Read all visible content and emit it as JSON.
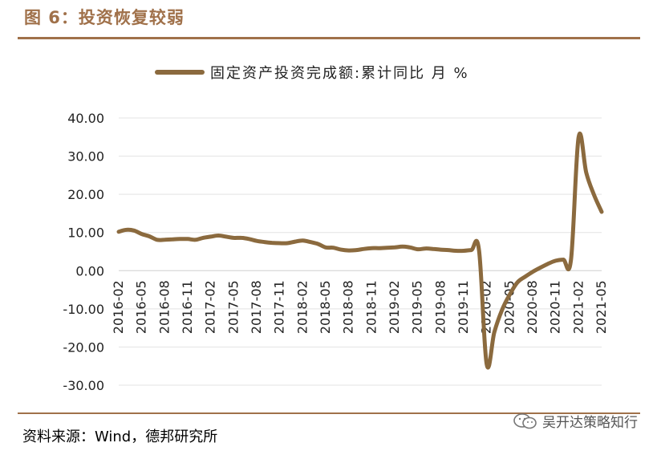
{
  "figure": {
    "title": "图 6：投资恢复较弱",
    "source": "资料来源：Wind，德邦研究所",
    "watermark": "吴开达策略知行",
    "line_color": "#8b6a3e",
    "accent_color": "#a0714a"
  },
  "chart_data": {
    "type": "line",
    "title": "",
    "xlabel": "",
    "ylabel": "",
    "ylim": [
      -30,
      40
    ],
    "y_ticks": [
      "40.00",
      "30.00",
      "20.00",
      "10.00",
      "0.00",
      "-10.00",
      "-20.00",
      "-30.00"
    ],
    "x_ticks": [
      "2016-02",
      "2016-05",
      "2016-08",
      "2016-11",
      "2017-02",
      "2017-05",
      "2017-08",
      "2017-11",
      "2018-02",
      "2018-05",
      "2018-08",
      "2018-11",
      "2019-02",
      "2019-05",
      "2019-08",
      "2019-11",
      "2020-02",
      "2020-05",
      "2020-08",
      "2020-11",
      "2021-02",
      "2021-05"
    ],
    "legend": "top",
    "grid": "horizontal",
    "series": [
      {
        "name": "固定资产投资完成额:累计同比 月 %",
        "x": [
          "2016-02",
          "2016-03",
          "2016-04",
          "2016-05",
          "2016-06",
          "2016-07",
          "2016-08",
          "2016-09",
          "2016-10",
          "2016-11",
          "2016-12",
          "2017-01",
          "2017-02",
          "2017-03",
          "2017-04",
          "2017-05",
          "2017-06",
          "2017-07",
          "2017-08",
          "2017-09",
          "2017-10",
          "2017-11",
          "2017-12",
          "2018-01",
          "2018-02",
          "2018-03",
          "2018-04",
          "2018-05",
          "2018-06",
          "2018-07",
          "2018-08",
          "2018-09",
          "2018-10",
          "2018-11",
          "2018-12",
          "2019-01",
          "2019-02",
          "2019-03",
          "2019-04",
          "2019-05",
          "2019-06",
          "2019-07",
          "2019-08",
          "2019-09",
          "2019-10",
          "2019-11",
          "2019-12",
          "2020-01",
          "2020-02",
          "2020-03",
          "2020-04",
          "2020-05",
          "2020-06",
          "2020-07",
          "2020-08",
          "2020-09",
          "2020-10",
          "2020-11",
          "2020-12",
          "2021-01",
          "2021-02",
          "2021-03",
          "2021-04",
          "2021-05"
        ],
        "values": [
          10.2,
          10.7,
          10.5,
          9.6,
          9.0,
          8.1,
          8.1,
          8.2,
          8.3,
          8.3,
          8.1,
          8.6,
          8.9,
          9.2,
          8.9,
          8.6,
          8.6,
          8.3,
          7.8,
          7.5,
          7.3,
          7.2,
          7.2,
          7.6,
          7.9,
          7.5,
          7.0,
          6.1,
          6.0,
          5.5,
          5.3,
          5.4,
          5.7,
          5.9,
          5.9,
          6.0,
          6.1,
          6.3,
          6.1,
          5.6,
          5.8,
          5.7,
          5.5,
          5.4,
          5.2,
          5.2,
          5.4,
          5.4,
          -24.5,
          -16.1,
          -10.3,
          -6.3,
          -3.1,
          -1.6,
          -0.3,
          0.8,
          1.8,
          2.6,
          2.9,
          2.9,
          35.0,
          25.6,
          19.9,
          15.4
        ]
      }
    ]
  }
}
